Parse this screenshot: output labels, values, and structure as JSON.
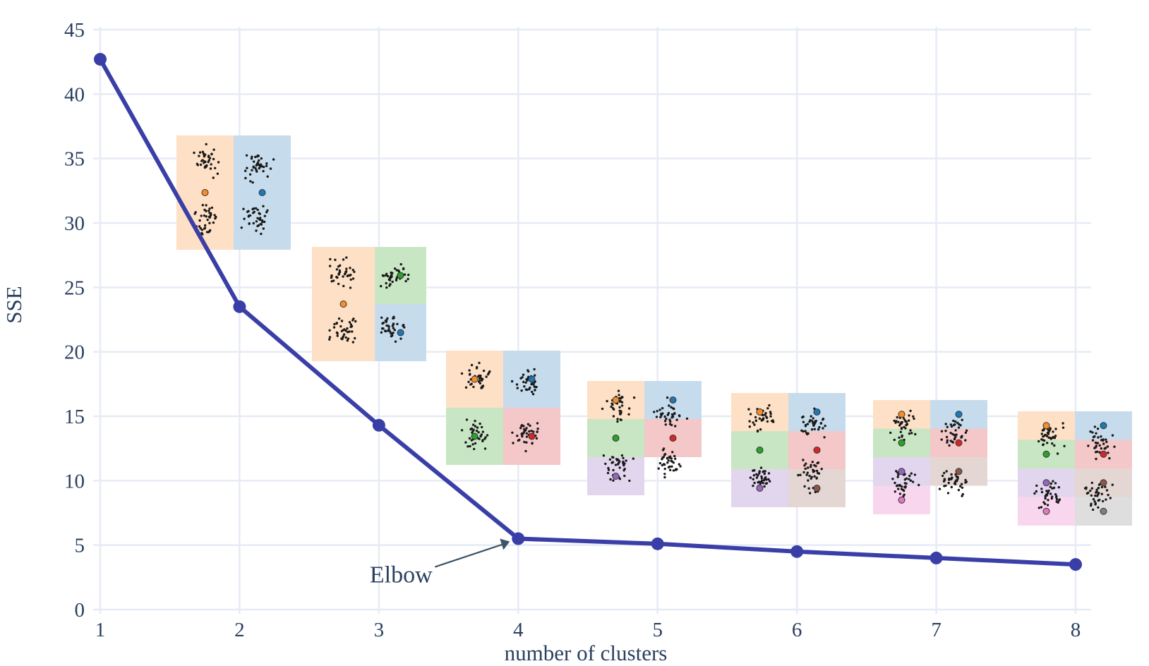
{
  "chart_data": {
    "type": "line",
    "title": "",
    "xlabel": "number of clusters",
    "ylabel": "SSE",
    "x": [
      1,
      2,
      3,
      4,
      5,
      6,
      7,
      8
    ],
    "xticks": [
      "1",
      "2",
      "3",
      "4",
      "5",
      "6",
      "7",
      "8"
    ],
    "yticks": [
      "0",
      "5",
      "10",
      "15",
      "20",
      "25",
      "30",
      "35",
      "40",
      "45"
    ],
    "ylim": [
      0,
      45
    ],
    "xlim": [
      1,
      8
    ],
    "grid": true,
    "legend": "none",
    "series": [
      {
        "values": [
          42.7,
          23.5,
          14.3,
          5.5,
          5.1,
          4.5,
          4.0,
          3.5
        ],
        "color": "#3a3fa8"
      }
    ],
    "annotations": [
      {
        "text": "Elbow",
        "x": 4,
        "y": 5.5
      }
    ],
    "insets": [
      {
        "k": 2,
        "clusters": [
          {
            "cx": 0.5,
            "cy": 0.5,
            "color": "#f2852e",
            "fill": "#fde0c5"
          },
          {
            "cx": 0.5,
            "cy": 0.5,
            "color": "#1f77b4",
            "fill": "#c6dcec"
          }
        ]
      },
      {
        "k": 3,
        "clusters": []
      },
      {
        "k": 4,
        "clusters": []
      },
      {
        "k": 5,
        "clusters": []
      },
      {
        "k": 6,
        "clusters": []
      },
      {
        "k": 7,
        "clusters": []
      },
      {
        "k": 8,
        "clusters": []
      }
    ]
  }
}
